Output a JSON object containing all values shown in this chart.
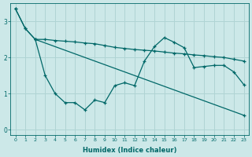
{
  "xlabel": "Humidex (Indice chaleur)",
  "bg_color": "#cce8e8",
  "line_color": "#006868",
  "grid_color": "#b0d4d4",
  "ylim": [
    -0.15,
    3.5
  ],
  "xlim": [
    -0.5,
    23.5
  ],
  "line1_x": [
    0,
    1,
    2,
    23
  ],
  "line1_y": [
    3.35,
    2.8,
    2.5,
    0.4
  ],
  "line2_x": [
    0,
    1,
    2,
    3,
    4,
    5,
    6,
    7,
    8,
    9,
    10,
    11,
    12,
    13,
    14,
    15,
    16,
    17,
    18,
    19,
    20,
    21,
    22,
    23
  ],
  "line2_y": [
    3.35,
    2.8,
    2.5,
    2.5,
    2.47,
    2.45,
    2.43,
    2.4,
    2.38,
    2.33,
    2.28,
    2.25,
    2.22,
    2.2,
    2.18,
    2.15,
    2.12,
    2.1,
    2.07,
    2.05,
    2.02,
    2.0,
    1.95,
    1.9
  ],
  "line3_x": [
    2,
    3,
    4,
    5,
    6,
    7,
    8,
    9,
    10,
    11,
    12,
    13,
    14,
    15,
    16,
    17,
    18,
    19,
    20,
    21,
    22,
    23
  ],
  "line3_y": [
    2.5,
    1.5,
    1.0,
    0.75,
    0.75,
    0.55,
    0.82,
    0.75,
    1.22,
    1.3,
    1.22,
    1.9,
    2.3,
    2.55,
    2.42,
    2.27,
    1.72,
    1.75,
    1.78,
    1.78,
    1.6,
    1.25
  ]
}
